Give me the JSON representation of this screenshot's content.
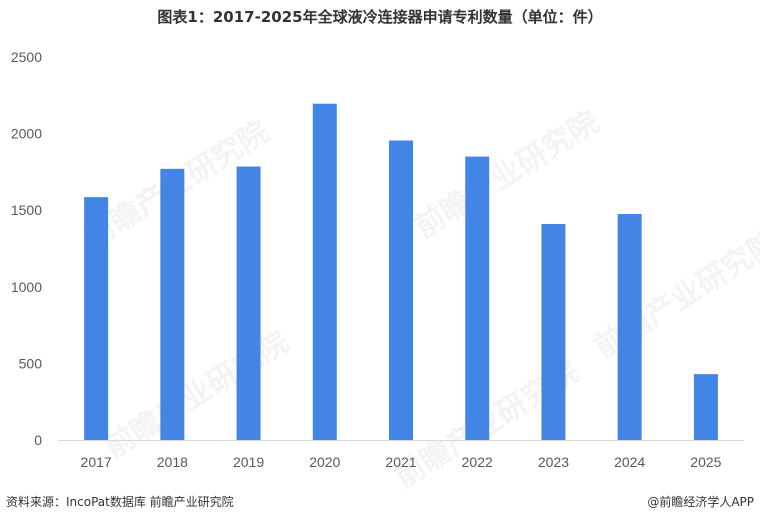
{
  "chart_data": {
    "type": "bar",
    "title": "图表1：2017-2025年全球液冷连接器申请专利数量（单位：件）",
    "categories": [
      "2017",
      "2018",
      "2019",
      "2020",
      "2021",
      "2022",
      "2023",
      "2024",
      "2025"
    ],
    "values": [
      1585,
      1770,
      1785,
      2195,
      1955,
      1850,
      1410,
      1475,
      430
    ],
    "ylim": [
      0,
      2500
    ],
    "yticks": [
      0,
      500,
      1000,
      1500,
      2000,
      2500
    ],
    "grid": false,
    "xlabel": "",
    "ylabel": "",
    "bar_color": "#4285e4"
  },
  "footer": {
    "source": "资料来源：IncoPat数据库 前瞻产业研究院",
    "brand": "@前瞻经济学人APP"
  },
  "watermark": {
    "text": "前瞻产业研究院"
  }
}
